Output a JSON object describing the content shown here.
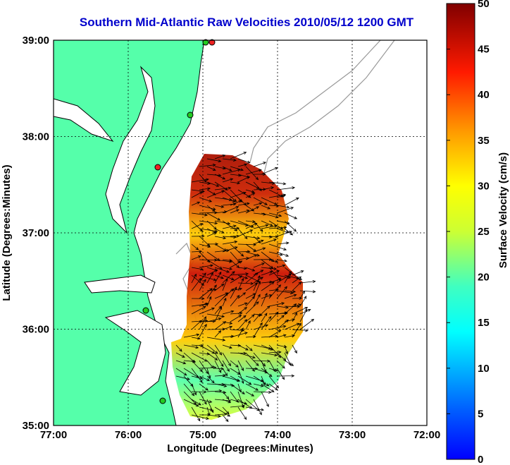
{
  "title": "Southern Mid-Atlantic Raw Velocities 2010/05/12 1200 GMT",
  "axes": {
    "xlabel": "Longitude (Degrees:Minutes)",
    "ylabel": "Latitude (Degrees:Minutes)",
    "x_ticks": [
      "77:00",
      "76:00",
      "75:00",
      "74:00",
      "73:00",
      "72:00"
    ],
    "y_ticks": [
      "39:00",
      "38:00",
      "37:00",
      "36:00",
      "35:00"
    ]
  },
  "colorbar": {
    "label": "Surface Velocity (cm/s)",
    "ticks": [
      "0",
      "5",
      "10",
      "15",
      "20",
      "25",
      "30",
      "35",
      "40",
      "45",
      "50"
    ],
    "range": [
      0,
      50
    ]
  },
  "colors": {
    "land": "#55ffaa",
    "coast": "#000000",
    "bathymetry": "#999999",
    "title": "#0000cc",
    "station_green": "#22cc22",
    "station_red": "#ee2222"
  },
  "chart_data": {
    "type": "heatmap",
    "xlim": [
      -77,
      -72
    ],
    "ylim": [
      35,
      39
    ],
    "grid": true,
    "colorbar_range": [
      0,
      50
    ]
  }
}
